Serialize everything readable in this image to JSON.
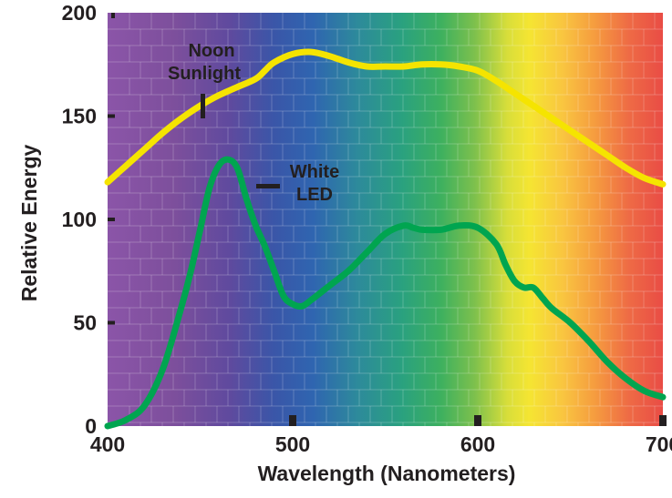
{
  "chart_data": {
    "type": "line",
    "title": "",
    "xlabel": "Wavelength (Nanometers)",
    "ylabel": "Relative Energy",
    "xlim": [
      400,
      700
    ],
    "ylim": [
      0,
      200
    ],
    "x_ticks": [
      400,
      500,
      600,
      700
    ],
    "y_ticks": [
      0,
      50,
      100,
      150,
      200
    ],
    "grid": true,
    "background": "visible-spectrum gradient (violet to red)",
    "series": [
      {
        "name": "Noon Sunlight",
        "label_lines": [
          "Noon",
          "Sunlight"
        ],
        "color": "#f5e400",
        "x": [
          400,
          410,
          420,
          430,
          440,
          450,
          460,
          470,
          480,
          485,
          490,
          500,
          510,
          520,
          530,
          540,
          550,
          560,
          570,
          580,
          590,
          600,
          610,
          620,
          630,
          640,
          650,
          660,
          670,
          680,
          690,
          700
        ],
        "y": [
          118,
          126,
          134,
          142,
          149,
          155,
          160,
          164,
          168,
          172,
          176,
          180,
          181,
          179,
          176,
          174,
          174,
          174,
          175,
          175,
          174,
          172,
          167,
          161,
          155,
          149,
          143,
          137,
          131,
          125,
          120,
          117
        ]
      },
      {
        "name": "White LED",
        "label_lines": [
          "White",
          "LED"
        ],
        "color": "#00a550",
        "x": [
          400,
          410,
          420,
          430,
          440,
          445,
          450,
          455,
          460,
          465,
          470,
          475,
          480,
          485,
          490,
          495,
          500,
          505,
          510,
          520,
          530,
          540,
          550,
          560,
          565,
          570,
          580,
          590,
          600,
          610,
          615,
          620,
          625,
          630,
          635,
          640,
          650,
          660,
          670,
          680,
          690,
          700
        ],
        "y": [
          0,
          3,
          10,
          28,
          58,
          75,
          95,
          115,
          126,
          129,
          125,
          110,
          97,
          87,
          75,
          63,
          59,
          58,
          61,
          68,
          75,
          84,
          93,
          97,
          96,
          95,
          95,
          97,
          96,
          88,
          78,
          70,
          67,
          67,
          62,
          57,
          50,
          41,
          31,
          23,
          17,
          14
        ]
      }
    ]
  }
}
